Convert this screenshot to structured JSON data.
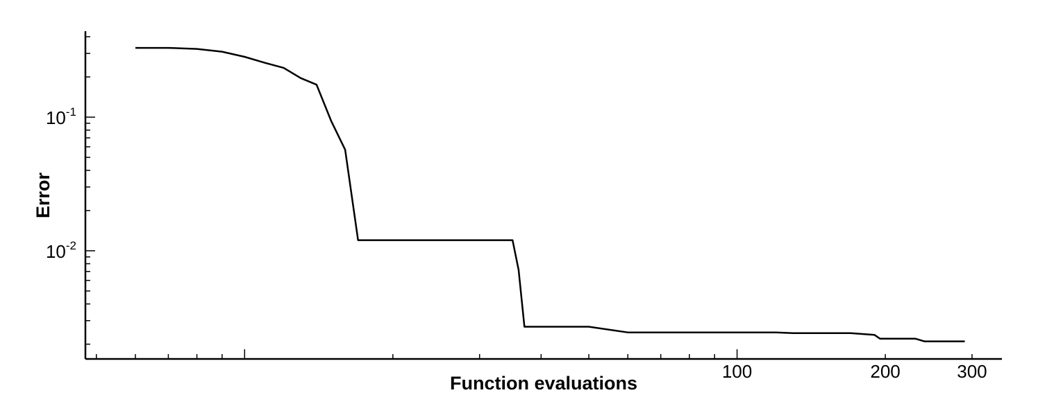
{
  "chart_data": {
    "type": "line",
    "xlabel": "Function evaluations",
    "ylabel": "Error",
    "xscale": "log",
    "yscale": "log",
    "xlim": [
      4.75,
      345
    ],
    "ylim": [
      0.00155,
      0.44
    ],
    "x_ticks": [
      {
        "value": 100,
        "label": "100"
      },
      {
        "value": 200,
        "label": "200"
      },
      {
        "value": 300,
        "label": "300"
      }
    ],
    "y_ticks": [
      {
        "value": 0.1,
        "base": "10",
        "exp": "-1"
      },
      {
        "value": 0.01,
        "base": "10",
        "exp": "-2"
      }
    ],
    "line_color": "#000000",
    "grid": false,
    "series": [
      {
        "x": [
          6,
          7,
          8,
          9,
          10,
          11,
          12,
          13,
          14,
          15,
          16,
          17,
          35,
          36,
          37,
          50,
          60,
          80,
          120,
          130,
          170,
          190,
          195,
          200,
          230,
          240,
          290
        ],
        "y": [
          0.33,
          0.33,
          0.324,
          0.309,
          0.283,
          0.255,
          0.234,
          0.196,
          0.175,
          0.093,
          0.057,
          0.012,
          0.012,
          0.0072,
          0.0027,
          0.0027,
          0.00245,
          0.00245,
          0.00245,
          0.00242,
          0.00242,
          0.00235,
          0.0022,
          0.0022,
          0.0022,
          0.0021,
          0.0021
        ]
      }
    ]
  }
}
